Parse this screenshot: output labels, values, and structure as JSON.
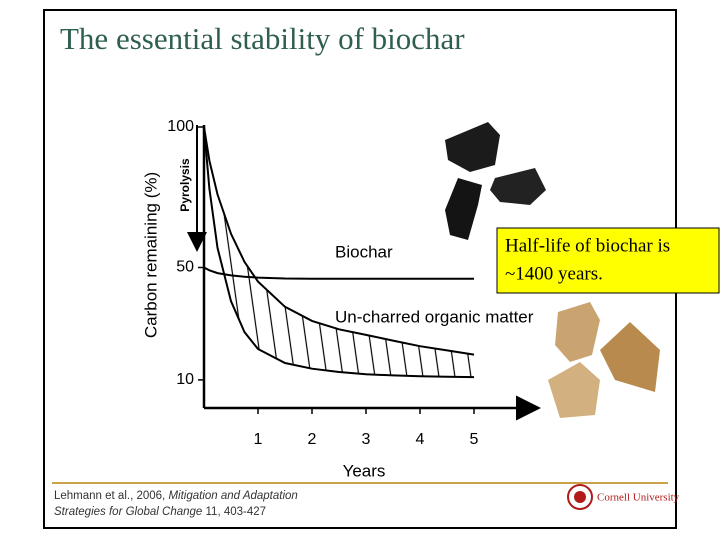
{
  "chart_data": {
    "type": "line",
    "title": "The essential stability of biochar",
    "x_label": "Years",
    "y_label": "Carbon remaining (%)",
    "x": [
      0,
      0.1,
      0.25,
      0.5,
      0.75,
      1,
      1.5,
      2,
      2.5,
      3,
      3.5,
      4,
      4.5,
      5
    ],
    "xlim": [
      0,
      6
    ],
    "xticks": [
      1,
      2,
      3,
      4,
      5
    ],
    "ylim": [
      0,
      100
    ],
    "yticks": [
      10,
      50,
      100
    ],
    "series": [
      {
        "name": "Biochar",
        "color": "#000000",
        "values": [
          50,
          49,
          48,
          47.2,
          46.7,
          46.4,
          46.1,
          46,
          46,
          46,
          46,
          46,
          46,
          46
        ]
      },
      {
        "name": "Un-charred organic matter",
        "color": "#000000",
        "values": [
          100,
          88,
          76,
          62,
          52,
          45,
          36,
          31,
          28,
          26,
          24,
          22,
          20.5,
          19
        ],
        "low": [
          100,
          78,
          57,
          38,
          27,
          21,
          16,
          14,
          12.8,
          12,
          11.6,
          11.3,
          11.1,
          11
        ]
      }
    ],
    "annotations": [
      "Pyrolysis"
    ]
  },
  "callout": [
    "Half-life of biochar is",
    "~1400 years."
  ],
  "citation": [
    "Lehmann et al., 2006,",
    "Mitigation and Adaptation",
    "Strategies for Global Change",
    "11, 403-427"
  ],
  "institution": "Cornell University"
}
